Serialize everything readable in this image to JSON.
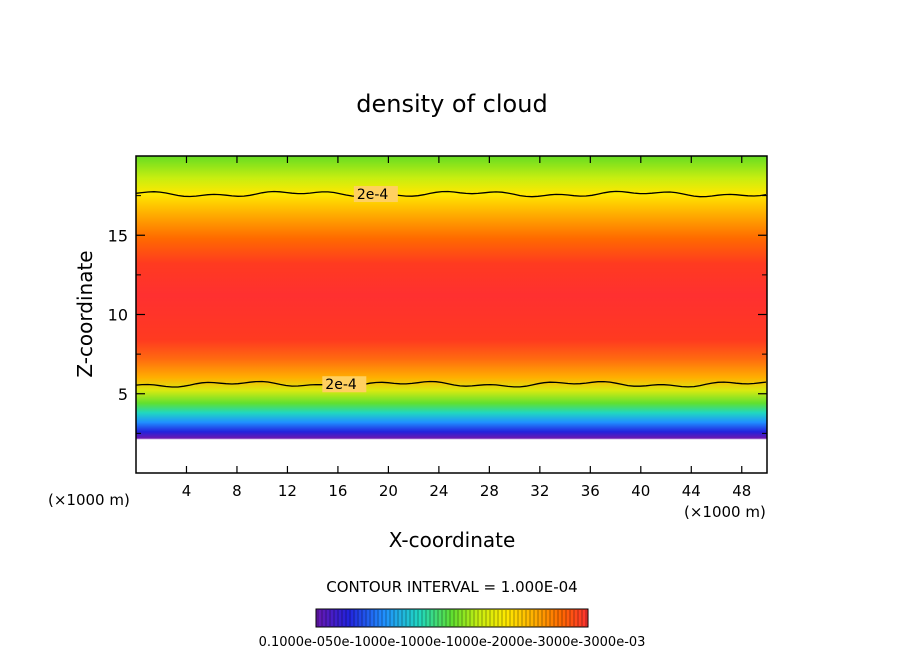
{
  "chart_data": {
    "type": "heatmap",
    "title": "density of cloud",
    "xlabel": "X-coordinate",
    "ylabel": "Z-coordinate",
    "x_unit": "(×1000 m)",
    "y_unit": "(×1000 m)",
    "xlim": [
      0,
      50
    ],
    "ylim": [
      0,
      20
    ],
    "x_ticks": [
      "4",
      "8",
      "12",
      "16",
      "20",
      "24",
      "28",
      "32",
      "36",
      "40",
      "44",
      "48"
    ],
    "y_ticks": [
      "5",
      "10",
      "15"
    ],
    "contour_interval_text": "CONTOUR INTERVAL = 1.000E-04",
    "contour_labels": [
      "2e-4",
      "2e-4"
    ],
    "colorbar_labels_text": "0.1000e-050e-1000e-1000e-1000e-2000e-3000e-3000e-03",
    "colorbar_range": [
      1e-06,
      0.0003
    ],
    "contour_lines": [
      {
        "level": "2e-4",
        "z_level": 17.6,
        "label_x": 17.5
      },
      {
        "level": "2e-4",
        "z_level": 5.6,
        "label_x": 15.0
      }
    ],
    "vertical_profile": [
      {
        "z": 2.2,
        "value": 1e-05
      },
      {
        "z": 3.2,
        "value": 5e-05
      },
      {
        "z": 4.5,
        "value": 0.00012
      },
      {
        "z": 5.6,
        "value": 0.0002
      },
      {
        "z": 7.5,
        "value": 0.00028
      },
      {
        "z": 10.0,
        "value": 0.0003
      },
      {
        "z": 12.5,
        "value": 0.00029
      },
      {
        "z": 15.0,
        "value": 0.00025
      },
      {
        "z": 17.6,
        "value": 0.0002
      },
      {
        "z": 20.0,
        "value": 0.00015
      }
    ]
  }
}
